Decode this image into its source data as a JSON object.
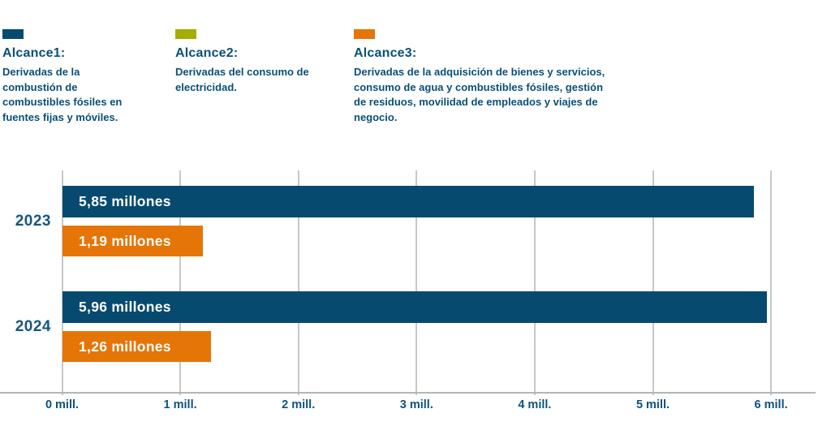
{
  "legend": {
    "items": [
      {
        "title": "Alcance1:",
        "description": "Derivadas de la combustión de combustibles fósiles en fuentes fijas y móviles.",
        "color": "#074A70"
      },
      {
        "title": "Alcance2:",
        "description": "Derivadas del consumo de electricidad.",
        "color": "#A5AD00"
      },
      {
        "title": "Alcance3:",
        "description": "Derivadas de la adquisición de bienes y servicios, consumo de agua y combustibles fósiles, gestión de residuos, movilidad de empleados y viajes de negocio.",
        "color": "#E57506"
      }
    ]
  },
  "chart_data": {
    "type": "bar",
    "orientation": "horizontal",
    "categories": [
      "2023",
      "2024"
    ],
    "series": [
      {
        "name": "Alcance 1",
        "color": "#074A70",
        "values": [
          5.85,
          5.96
        ],
        "value_labels": [
          "5,85 millones",
          "5,96 millones"
        ]
      },
      {
        "name": "Alcance 3",
        "color": "#E57506",
        "values": [
          1.19,
          1.26
        ],
        "value_labels": [
          "1,19 millones",
          "1,26 millones"
        ]
      }
    ],
    "x_ticks": [
      "0 mill.",
      "1 mill.",
      "2 mill.",
      "3 mill.",
      "4 mill.",
      "5 mill.",
      "6 mill."
    ],
    "x_tick_values": [
      0,
      1,
      2,
      3,
      4,
      5,
      6
    ],
    "xlim": [
      0,
      6.38
    ],
    "grid": true,
    "legend_position": "top"
  },
  "colors": {
    "grid": "#C7C7C7",
    "axis": "#B5B5B5",
    "text_blue": "#0A5078",
    "tick_text": "#0F527C",
    "year_text": "#15587E",
    "bar_label": "#FFFFFF"
  }
}
